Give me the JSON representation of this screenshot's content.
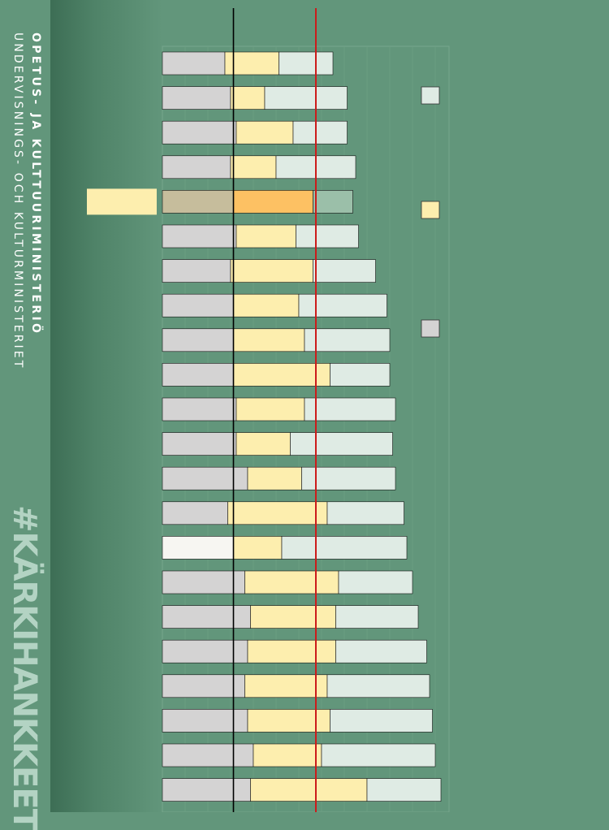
{
  "brand": {
    "line_fi": "OPETUS- JA KULTTUURIMINISTERIÖ",
    "line_sv": "UNDERVISNINGS- OCH KULTURMINISTERIET",
    "hashtag": "#KÄRKIHANKKEET"
  },
  "colors": {
    "segment_1": "#d4d3d3",
    "segment_2": "#fdeeae",
    "segment_3": "#dfebe4",
    "highlight_segment_1": "#c6bd9c",
    "highlight_segment_2": "#fdc163",
    "highlight_segment_3": "#9bbfa9",
    "light_row_segment_1": "#f7f6f2",
    "reference_line_black": "#000000",
    "reference_line_red": "#cc1b1b",
    "background": "#62967b",
    "highlight_label_box": "#fdeeae"
  },
  "chart_data": {
    "type": "bar",
    "orientation": "horizontal",
    "stacked": true,
    "title": "",
    "xlabel": "",
    "ylabel": "",
    "x_range": [
      0,
      100
    ],
    "grid": false,
    "categories": [
      "",
      "",
      "",
      "",
      "",
      "",
      "",
      "",
      "",
      "",
      "",
      "",
      "",
      "",
      "",
      "",
      "",
      "",
      "",
      "",
      "",
      ""
    ],
    "series": [
      {
        "values": [
          22,
          24,
          26,
          24,
          25,
          26,
          24,
          25,
          25,
          25,
          26,
          26,
          30,
          23,
          25,
          29,
          31,
          30,
          29,
          30,
          32,
          31
        ]
      },
      {
        "values": [
          19,
          12,
          20,
          16,
          28,
          21,
          29,
          23,
          25,
          34,
          24,
          19,
          19,
          35,
          17,
          33,
          30,
          31,
          29,
          29,
          24,
          41
        ]
      },
      {
        "values": [
          19,
          29,
          19,
          28,
          14,
          22,
          22,
          31,
          30,
          21,
          32,
          36,
          33,
          27,
          44,
          26,
          29,
          32,
          36,
          36,
          40,
          26
        ]
      }
    ],
    "highlight_index": 4,
    "light_first_segment_index": 14,
    "reference_lines": [
      25,
      54
    ],
    "legend": {
      "placement": "right",
      "entries": [
        "",
        "",
        ""
      ]
    }
  }
}
